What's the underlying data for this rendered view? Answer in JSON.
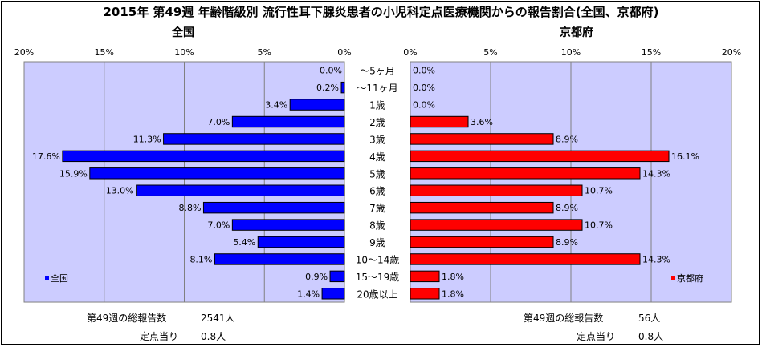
{
  "title": "2015年 第49週 年齢階級別 流行性耳下腺炎患者の小児科定点医療機関からの報告割合(全国、京都府)",
  "chart_data": {
    "type": "bar",
    "orientation": "horizontal-butterfly",
    "categories": [
      "～5ヶ月",
      "～11ヶ月",
      "1歳",
      "2歳",
      "3歳",
      "4歳",
      "5歳",
      "6歳",
      "7歳",
      "8歳",
      "9歳",
      "10～14歳",
      "15～19歳",
      "20歳以上"
    ],
    "panels": [
      {
        "title": "全国",
        "legend": "全国",
        "legend_position": "bottom-left",
        "color": "#0000ff",
        "direction": "left",
        "xlim": [
          0,
          20
        ],
        "ticks": [
          "20%",
          "15%",
          "10%",
          "5%",
          "0%"
        ],
        "values": [
          0.0,
          0.2,
          3.4,
          7.0,
          11.3,
          17.6,
          15.9,
          13.0,
          8.8,
          7.0,
          5.4,
          8.1,
          0.9,
          1.4
        ],
        "labels": [
          "0.0%",
          "0.2%",
          "3.4%",
          "7.0%",
          "11.3%",
          "17.6%",
          "15.9%",
          "13.0%",
          "8.8%",
          "7.0%",
          "5.4%",
          "8.1%",
          "0.9%",
          "1.4%"
        ]
      },
      {
        "title": "京都府",
        "legend": "京都府",
        "legend_position": "bottom-right",
        "color": "#ff0000",
        "direction": "right",
        "xlim": [
          0,
          20
        ],
        "ticks": [
          "0%",
          "5%",
          "10%",
          "15%",
          "20%"
        ],
        "values": [
          0.0,
          0.0,
          0.0,
          3.6,
          8.9,
          16.1,
          14.3,
          10.7,
          8.9,
          10.7,
          8.9,
          14.3,
          1.8,
          1.8
        ],
        "labels": [
          "0.0%",
          "0.0%",
          "0.0%",
          "3.6%",
          "8.9%",
          "16.1%",
          "14.3%",
          "10.7%",
          "8.9%",
          "10.7%",
          "8.9%",
          "14.3%",
          "1.8%",
          "1.8%"
        ]
      }
    ],
    "plot_background": "#ccccff",
    "grid": true
  },
  "footer": {
    "left": {
      "total_label": "第49週の総報告数",
      "total_value": "2541人",
      "per_label": "定点当り",
      "per_value": "0.8人"
    },
    "right": {
      "total_label": "第49週の総報告数",
      "total_value": "56人",
      "per_label": "定点当り",
      "per_value": "0.8人"
    }
  }
}
